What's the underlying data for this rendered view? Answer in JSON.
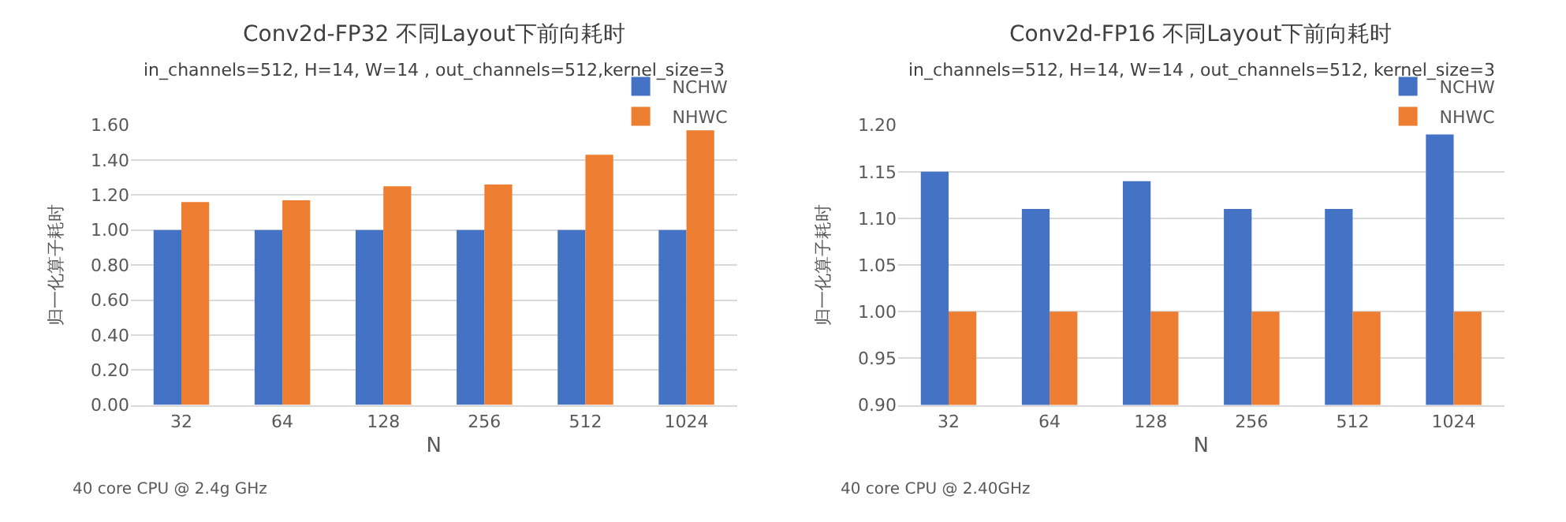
{
  "chart_data": [
    {
      "type": "bar",
      "title": "Conv2d-FP32 不同Layout下前向耗时",
      "subtitle": "in_channels=512, H=14, W=14 , out_channels=512,kernel_size=3",
      "xlabel": "N",
      "ylabel": "归一化算子耗时",
      "categories": [
        "32",
        "64",
        "128",
        "256",
        "512",
        "1024"
      ],
      "series": [
        {
          "name": "NCHW",
          "color": "#4472c4",
          "values": [
            1.0,
            1.0,
            1.0,
            1.0,
            1.0,
            1.0
          ]
        },
        {
          "name": "NHWC",
          "color": "#ed7d31",
          "values": [
            1.16,
            1.17,
            1.25,
            1.26,
            1.43,
            1.57
          ]
        }
      ],
      "ylim": [
        0,
        1.6
      ],
      "yticks": [
        {
          "value": 0,
          "label": "0.00"
        },
        {
          "value": 0.2,
          "label": "0.20"
        },
        {
          "value": 0.4,
          "label": "0.40"
        },
        {
          "value": 0.6,
          "label": "0.60"
        },
        {
          "value": 0.8,
          "label": "0.80"
        },
        {
          "value": 1.0,
          "label": "1.00"
        },
        {
          "value": 1.2,
          "label": "1.20"
        },
        {
          "value": 1.4,
          "label": "1.40"
        },
        {
          "value": 1.6,
          "label": "1.60"
        }
      ],
      "grid": "y",
      "legend": "top right",
      "annotations": [
        "40 core CPU @ 2.4g GHz"
      ]
    },
    {
      "type": "bar",
      "title": "Conv2d-FP16 不同Layout下前向耗时",
      "subtitle": "in_channels=512, H=14, W=14 , out_channels=512, kernel_size=3",
      "xlabel": "N",
      "ylabel": "归一化算子耗时",
      "categories": [
        "32",
        "64",
        "128",
        "256",
        "512",
        "1024"
      ],
      "series": [
        {
          "name": "NCHW",
          "color": "#4472c4",
          "values": [
            1.15,
            1.11,
            1.14,
            1.11,
            1.11,
            1.19
          ]
        },
        {
          "name": "NHWC",
          "color": "#ed7d31",
          "values": [
            1.0,
            1.0,
            1.0,
            1.0,
            1.0,
            1.0
          ]
        }
      ],
      "ylim": [
        0.9,
        1.2
      ],
      "yticks": [
        {
          "value": 0.9,
          "label": "0.90"
        },
        {
          "value": 0.95,
          "label": "0.95"
        },
        {
          "value": 1.0,
          "label": "1.00"
        },
        {
          "value": 1.05,
          "label": "1.05"
        },
        {
          "value": 1.1,
          "label": "1.10"
        },
        {
          "value": 1.15,
          "label": "1.15"
        },
        {
          "value": 1.2,
          "label": "1.20"
        }
      ],
      "grid": "y",
      "legend": "top right",
      "annotations": [
        "40 core CPU @ 2.40GHz"
      ]
    }
  ]
}
